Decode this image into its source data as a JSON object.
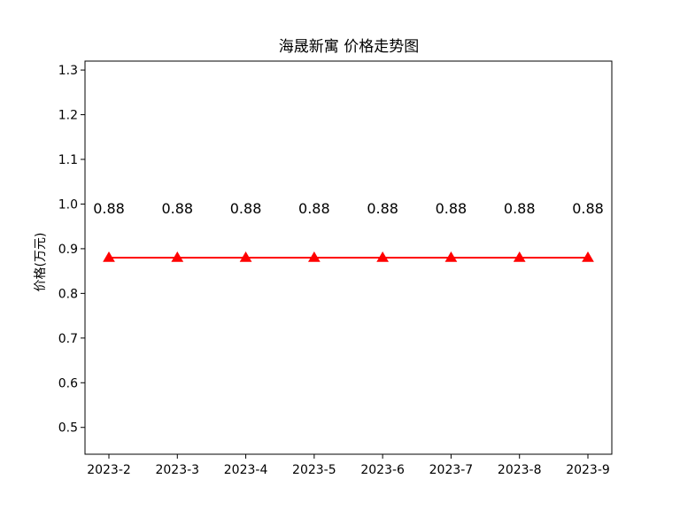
{
  "chart_data": {
    "type": "line",
    "title": "海晟新寓 价格走势图",
    "xlabel": "",
    "ylabel": "价格(万元)",
    "categories": [
      "2023-2",
      "2023-3",
      "2023-4",
      "2023-5",
      "2023-6",
      "2023-7",
      "2023-8",
      "2023-9"
    ],
    "series": [
      {
        "values": [
          0.88,
          0.88,
          0.88,
          0.88,
          0.88,
          0.88,
          0.88,
          0.88
        ],
        "color": "#ff0000",
        "marker": "triangle-up"
      }
    ],
    "data_labels": [
      "0.88",
      "0.88",
      "0.88",
      "0.88",
      "0.88",
      "0.88",
      "0.88",
      "0.88"
    ],
    "ylim": [
      0.44,
      1.32
    ],
    "yticks": [
      "0.5",
      "0.6",
      "0.7",
      "0.8",
      "0.9",
      "1.0",
      "1.1",
      "1.2",
      "1.3"
    ],
    "grid": false,
    "legend": "none"
  }
}
